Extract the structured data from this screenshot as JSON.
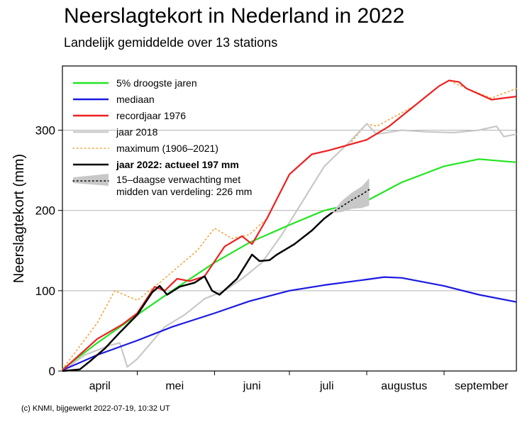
{
  "title": "Neerslagtekort in Nederland in 2022",
  "subtitle": "Landelijk gemiddelde over 13 stations",
  "footer": "(c) KNMI, bijgewerkt 2022-07-19, 10:32 UT",
  "chart_data": {
    "type": "line",
    "ylabel": "Neerslagtekort (mm)",
    "xlabel": "",
    "ylim": [
      0,
      380
    ],
    "yticks": [
      0,
      100,
      200,
      300
    ],
    "x_range": [
      "2022-04-01",
      "2022-09-30"
    ],
    "month_labels": [
      {
        "label": "april",
        "date": "2022-04-16"
      },
      {
        "label": "mei",
        "date": "2022-05-16"
      },
      {
        "label": "juni",
        "date": "2022-06-16"
      },
      {
        "label": "juli",
        "date": "2022-07-16"
      },
      {
        "label": "augustus",
        "date": "2022-08-16"
      },
      {
        "label": "september",
        "date": "2022-09-16"
      }
    ],
    "grid": "horizontal",
    "legend_position": "top-left",
    "series": [
      {
        "name": "5% droogste jaren",
        "color": "#22e522",
        "style": "solid",
        "points": [
          [
            "2022-04-01",
            2
          ],
          [
            "2022-04-15",
            35
          ],
          [
            "2022-05-01",
            70
          ],
          [
            "2022-05-15",
            100
          ],
          [
            "2022-06-01",
            135
          ],
          [
            "2022-06-15",
            160
          ],
          [
            "2022-07-01",
            182
          ],
          [
            "2022-07-15",
            200
          ],
          [
            "2022-08-01",
            212
          ],
          [
            "2022-08-15",
            235
          ],
          [
            "2022-09-01",
            255
          ],
          [
            "2022-09-15",
            264
          ],
          [
            "2022-09-30",
            260
          ]
        ]
      },
      {
        "name": "mediaan",
        "color": "#1a1ae0",
        "style": "solid",
        "points": [
          [
            "2022-04-01",
            1
          ],
          [
            "2022-04-15",
            20
          ],
          [
            "2022-05-01",
            38
          ],
          [
            "2022-05-15",
            55
          ],
          [
            "2022-06-01",
            72
          ],
          [
            "2022-06-15",
            87
          ],
          [
            "2022-07-01",
            100
          ],
          [
            "2022-07-15",
            107
          ],
          [
            "2022-08-01",
            114
          ],
          [
            "2022-08-08",
            117
          ],
          [
            "2022-08-15",
            116
          ],
          [
            "2022-09-01",
            106
          ],
          [
            "2022-09-15",
            95
          ],
          [
            "2022-09-30",
            86
          ]
        ]
      },
      {
        "name": "recordjaar 1976",
        "color": "#ee2020",
        "style": "solid",
        "points": [
          [
            "2022-04-01",
            1
          ],
          [
            "2022-04-15",
            40
          ],
          [
            "2022-04-25",
            58
          ],
          [
            "2022-05-01",
            72
          ],
          [
            "2022-05-08",
            105
          ],
          [
            "2022-05-12",
            100
          ],
          [
            "2022-05-17",
            115
          ],
          [
            "2022-05-22",
            112
          ],
          [
            "2022-05-28",
            118
          ],
          [
            "2022-06-05",
            155
          ],
          [
            "2022-06-12",
            168
          ],
          [
            "2022-06-16",
            158
          ],
          [
            "2022-06-22",
            190
          ],
          [
            "2022-07-01",
            245
          ],
          [
            "2022-07-10",
            270
          ],
          [
            "2022-07-17",
            275
          ],
          [
            "2022-07-25",
            282
          ],
          [
            "2022-08-01",
            288
          ],
          [
            "2022-08-10",
            305
          ],
          [
            "2022-08-20",
            330
          ],
          [
            "2022-08-30",
            355
          ],
          [
            "2022-09-03",
            362
          ],
          [
            "2022-09-07",
            360
          ],
          [
            "2022-09-10",
            352
          ],
          [
            "2022-09-20",
            338
          ],
          [
            "2022-09-30",
            342
          ]
        ]
      },
      {
        "name": "jaar 2018",
        "color": "#c8c8c8",
        "style": "solid",
        "points": [
          [
            "2022-04-01",
            0
          ],
          [
            "2022-04-10",
            20
          ],
          [
            "2022-04-20",
            32
          ],
          [
            "2022-04-24",
            35
          ],
          [
            "2022-04-27",
            5
          ],
          [
            "2022-05-01",
            15
          ],
          [
            "2022-05-12",
            55
          ],
          [
            "2022-05-20",
            70
          ],
          [
            "2022-05-28",
            90
          ],
          [
            "2022-06-05",
            100
          ],
          [
            "2022-06-12",
            115
          ],
          [
            "2022-06-20",
            135
          ],
          [
            "2022-06-28",
            170
          ],
          [
            "2022-07-05",
            205
          ],
          [
            "2022-07-15",
            255
          ],
          [
            "2022-07-25",
            285
          ],
          [
            "2022-08-01",
            308
          ],
          [
            "2022-08-05",
            295
          ],
          [
            "2022-08-15",
            300
          ],
          [
            "2022-08-25",
            298
          ],
          [
            "2022-09-05",
            297
          ],
          [
            "2022-09-15",
            300
          ],
          [
            "2022-09-22",
            305
          ],
          [
            "2022-09-25",
            292
          ],
          [
            "2022-09-30",
            295
          ]
        ]
      },
      {
        "name": "maximum (1906–2021)",
        "color": "#f5a23a",
        "style": "dotted",
        "points": [
          [
            "2022-04-01",
            2
          ],
          [
            "2022-04-15",
            60
          ],
          [
            "2022-04-22",
            100
          ],
          [
            "2022-05-01",
            88
          ],
          [
            "2022-05-10",
            110
          ],
          [
            "2022-05-25",
            150
          ],
          [
            "2022-06-01",
            178
          ],
          [
            "2022-06-08",
            165
          ],
          [
            "2022-06-15",
            170
          ],
          [
            "2022-06-22",
            190
          ],
          [
            "2022-07-01",
            245
          ],
          [
            "2022-07-10",
            270
          ],
          [
            "2022-07-17",
            275
          ],
          [
            "2022-07-25",
            282
          ],
          [
            "2022-08-01",
            308
          ],
          [
            "2022-08-05",
            305
          ],
          [
            "2022-08-20",
            330
          ],
          [
            "2022-08-30",
            355
          ],
          [
            "2022-09-03",
            362
          ],
          [
            "2022-09-10",
            352
          ],
          [
            "2022-09-20",
            340
          ],
          [
            "2022-09-30",
            352
          ]
        ]
      },
      {
        "name": "jaar 2022: actueel 197 mm",
        "color": "#000000",
        "style": "solid",
        "points": [
          [
            "2022-04-01",
            0
          ],
          [
            "2022-04-08",
            2
          ],
          [
            "2022-04-12",
            12
          ],
          [
            "2022-04-18",
            28
          ],
          [
            "2022-04-24",
            48
          ],
          [
            "2022-05-01",
            70
          ],
          [
            "2022-05-07",
            98
          ],
          [
            "2022-05-10",
            106
          ],
          [
            "2022-05-13",
            95
          ],
          [
            "2022-05-18",
            105
          ],
          [
            "2022-05-24",
            110
          ],
          [
            "2022-05-28",
            118
          ],
          [
            "2022-05-31",
            100
          ],
          [
            "2022-06-03",
            95
          ],
          [
            "2022-06-10",
            115
          ],
          [
            "2022-06-16",
            145
          ],
          [
            "2022-06-19",
            137
          ],
          [
            "2022-06-23",
            138
          ],
          [
            "2022-06-26",
            145
          ],
          [
            "2022-07-03",
            158
          ],
          [
            "2022-07-10",
            175
          ],
          [
            "2022-07-15",
            190
          ],
          [
            "2022-07-18",
            197
          ]
        ]
      },
      {
        "name": "15–daagse verwachting met\nmidden van verdeling: 226 mm",
        "color": "#aaaaaa",
        "style": "forecast",
        "points": [
          [
            "2022-07-18",
            197
          ],
          [
            "2022-07-22",
            205
          ],
          [
            "2022-07-26",
            213
          ],
          [
            "2022-07-30",
            220
          ],
          [
            "2022-08-02",
            226
          ]
        ],
        "band_upper": [
          [
            "2022-07-18",
            197
          ],
          [
            "2022-07-22",
            212
          ],
          [
            "2022-07-26",
            222
          ],
          [
            "2022-07-30",
            230
          ],
          [
            "2022-08-02",
            240
          ]
        ],
        "band_lower": [
          [
            "2022-07-18",
            197
          ],
          [
            "2022-07-22",
            198
          ],
          [
            "2022-07-26",
            202
          ],
          [
            "2022-07-30",
            203
          ],
          [
            "2022-08-02",
            206
          ]
        ]
      }
    ]
  }
}
